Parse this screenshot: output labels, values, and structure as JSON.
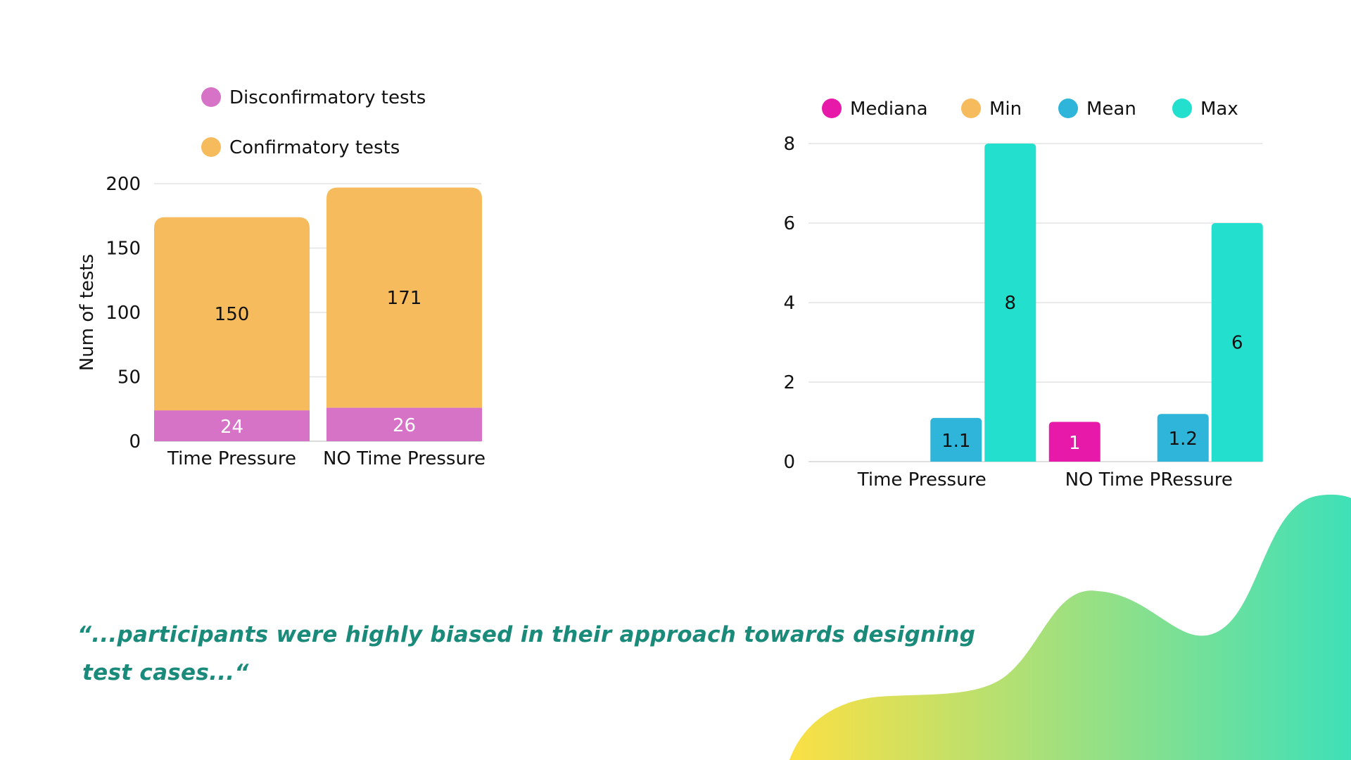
{
  "colors": {
    "disconfirmatory": "#d673c6",
    "confirmatory": "#f6bb5c",
    "mediana": "#e619a8",
    "min": "#f6bb5c",
    "mean": "#2eb5d9",
    "max": "#22e0cd",
    "quote": "#1a8a7a",
    "gridline": "#e3e3e3",
    "blob_start": "#fbe044",
    "blob_end": "#3fe0b8"
  },
  "chart_data": [
    {
      "type": "bar",
      "stacked": true,
      "title": "",
      "xlabel": "",
      "ylabel": "Num of tests",
      "ylim": [
        0,
        200
      ],
      "yticks": [
        0,
        50,
        100,
        150,
        200
      ],
      "grid": true,
      "legend_position": "top-left",
      "categories": [
        "Time Pressure",
        "NO Time Pressure"
      ],
      "series": [
        {
          "name": "Disconfirmatory tests",
          "values": [
            24,
            26
          ]
        },
        {
          "name": "Confirmatory tests",
          "values": [
            150,
            171
          ]
        }
      ],
      "legend": [
        "Disconfirmatory tests",
        "Confirmatory tests"
      ]
    },
    {
      "type": "bar",
      "stacked": false,
      "title": "",
      "xlabel": "",
      "ylabel": "",
      "ylim": [
        0,
        8
      ],
      "yticks": [
        0,
        2,
        4,
        6,
        8
      ],
      "grid": true,
      "legend_position": "top",
      "categories": [
        "Time Pressure",
        "NO Time PRessure"
      ],
      "series": [
        {
          "name": "Mediana",
          "values": [
            0,
            1
          ]
        },
        {
          "name": "Min",
          "values": [
            0,
            0
          ]
        },
        {
          "name": "Mean",
          "values": [
            1.1,
            1.2
          ]
        },
        {
          "name": "Max",
          "values": [
            8,
            6
          ]
        }
      ],
      "legend": [
        "Mediana",
        "Min",
        "Mean",
        "Max"
      ]
    }
  ],
  "quote": {
    "line1": "“...participants were highly biased in their approach towards designing",
    "line2": "test cases...“"
  }
}
